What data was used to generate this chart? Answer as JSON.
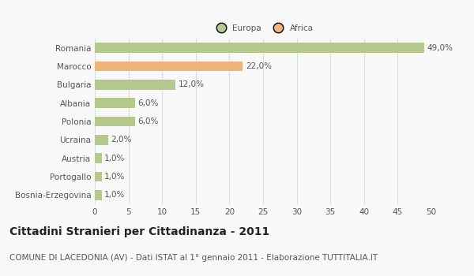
{
  "categories": [
    "Romania",
    "Marocco",
    "Bulgaria",
    "Albania",
    "Polonia",
    "Ucraina",
    "Austria",
    "Portogallo",
    "Bosnia-Erzegovina"
  ],
  "values": [
    49.0,
    22.0,
    12.0,
    6.0,
    6.0,
    2.0,
    1.0,
    1.0,
    1.0
  ],
  "colors": [
    "#b5c98e",
    "#f0b47a",
    "#b5c98e",
    "#b5c98e",
    "#b5c98e",
    "#b5c98e",
    "#b5c98e",
    "#b5c98e",
    "#b5c98e"
  ],
  "labels": [
    "49,0%",
    "22,0%",
    "12,0%",
    "6,0%",
    "6,0%",
    "2,0%",
    "1,0%",
    "1,0%",
    "1,0%"
  ],
  "legend_labels": [
    "Europa",
    "Africa"
  ],
  "legend_colors": [
    "#b5c98e",
    "#f0b47a"
  ],
  "xlim": [
    0,
    50
  ],
  "xticks": [
    0,
    5,
    10,
    15,
    20,
    25,
    30,
    35,
    40,
    45,
    50
  ],
  "title": "Cittadini Stranieri per Cittadinanza - 2011",
  "subtitle": "COMUNE DI LACEDONIA (AV) - Dati ISTAT al 1° gennaio 2011 - Elaborazione TUTTITALIA.IT",
  "bg_color": "#f9f9f9",
  "bar_height": 0.55,
  "grid_color": "#dddddd",
  "label_fontsize": 7.5,
  "tick_fontsize": 7.5,
  "title_fontsize": 10,
  "subtitle_fontsize": 7.5,
  "text_color": "#555555",
  "title_color": "#222222"
}
